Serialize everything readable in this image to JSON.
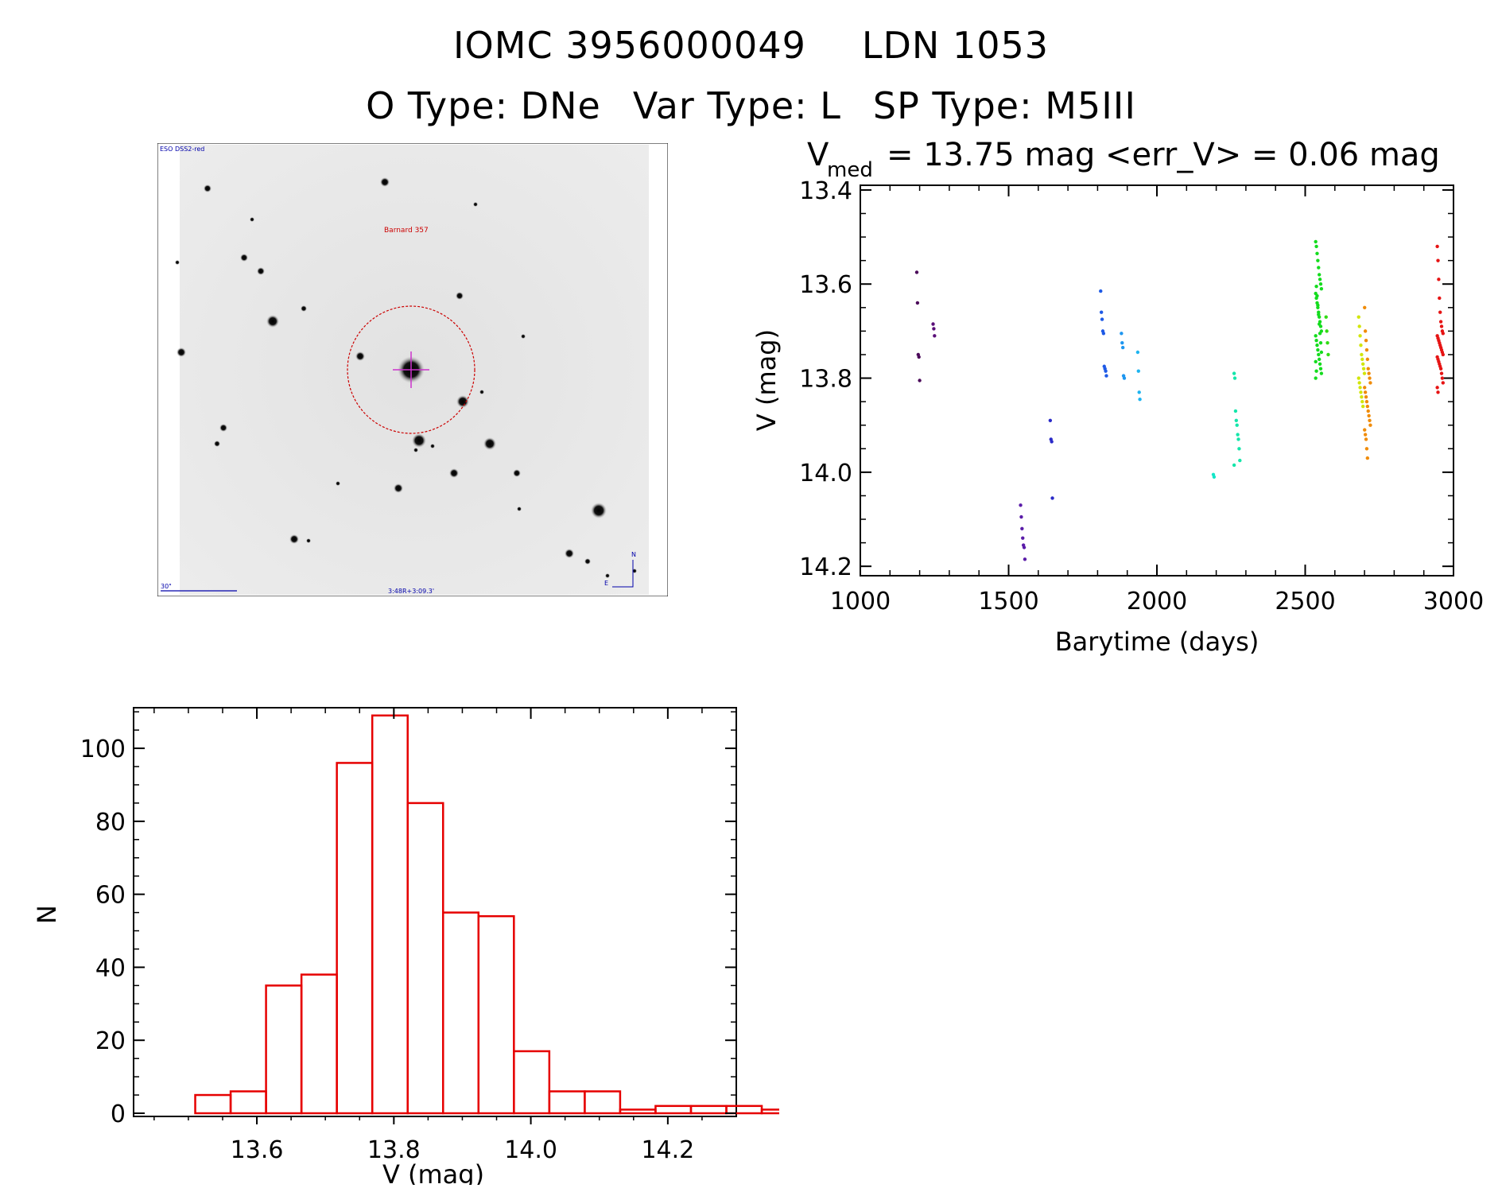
{
  "header": {
    "object_id": "IOMC 3956000049",
    "object_name": "LDN 1053",
    "otype_label": "O Type:",
    "otype": "DNe",
    "vartype_label": "Var Type:",
    "vartype": "L",
    "sptype_label": "SP Type:",
    "sptype": "M5III"
  },
  "finder": {
    "survey_label": "ESO DSS2-red",
    "target_label": "Barnard 357",
    "scale_label": "30\"",
    "coords_label": "3:48R+3:09.3'",
    "north_label": "N",
    "east_label": "E",
    "circle_color": "#cc0000",
    "marker_color": "#cc33cc"
  },
  "chart_data": [
    {
      "type": "scatter",
      "title_prefix": "V",
      "title_sub": "med",
      "title_rest": "= 13.75 mag <err_V> = 0.06 mag",
      "xlabel": "Barytime (days)",
      "ylabel": "V (mag)",
      "xlim": [
        1000,
        3000
      ],
      "ylim": [
        14.22,
        13.39
      ],
      "y_inverted": true,
      "xticks": [
        1000,
        1500,
        2000,
        2500,
        3000
      ],
      "yticks": [
        13.4,
        13.6,
        13.8,
        14.0,
        14.2
      ],
      "xtick_labels": [
        "1000",
        "1500",
        "2000",
        "2500",
        "3000"
      ],
      "ytick_labels": [
        "13.4",
        "13.6",
        "13.8",
        "14.0",
        "14.2"
      ],
      "grid": false,
      "groups": [
        {
          "x": 1200,
          "color": "#4b0a5a",
          "values": [
            13.575,
            13.64,
            13.75,
            13.755,
            13.805
          ]
        },
        {
          "x": 1255,
          "color": "#5a0f78",
          "values": [
            13.685,
            13.695,
            13.71
          ]
        },
        {
          "x": 1550,
          "color": "#5a1ca8",
          "values": [
            14.07,
            14.095,
            14.12,
            14.14,
            14.155,
            14.16,
            14.185
          ]
        },
        {
          "x": 1650,
          "color": "#2a2ac8",
          "values": [
            13.89,
            13.93,
            13.935,
            14.055
          ]
        },
        {
          "x": 1820,
          "color": "#1e5ae6",
          "values": [
            13.615,
            13.66,
            13.675,
            13.7,
            13.705,
            13.775,
            13.78,
            13.785,
            13.795
          ]
        },
        {
          "x": 1890,
          "color": "#1e96f0",
          "values": [
            13.705,
            13.725,
            13.735,
            13.795,
            13.8
          ]
        },
        {
          "x": 1945,
          "color": "#1eb4f0",
          "values": [
            13.745,
            13.785,
            13.83,
            13.845
          ]
        },
        {
          "x": 2200,
          "color": "#14e6c8",
          "values": [
            14.005,
            14.01
          ]
        },
        {
          "x": 2270,
          "color": "#14e6aa",
          "values": [
            13.79,
            13.8,
            13.87,
            13.89,
            13.9,
            13.92,
            13.93,
            13.95,
            13.975,
            13.985
          ]
        },
        {
          "x": 2545,
          "color": "#14dc1e",
          "values": [
            13.51,
            13.52,
            13.535,
            13.55,
            13.565,
            13.58,
            13.59,
            13.6,
            13.61,
            13.62,
            13.63,
            13.64,
            13.65,
            13.66,
            13.67,
            13.68,
            13.69,
            13.7,
            13.71,
            13.72,
            13.73,
            13.74,
            13.75,
            13.76,
            13.77,
            13.78,
            13.79,
            13.8,
            13.605,
            13.625,
            13.645,
            13.665,
            13.685,
            13.705,
            13.725,
            13.745,
            13.765,
            13.785
          ]
        },
        {
          "x": 2580,
          "color": "#32dc14",
          "values": [
            13.67,
            13.7,
            13.725,
            13.75
          ]
        },
        {
          "x": 2690,
          "color": "#d2e60a",
          "values": [
            13.67,
            13.69,
            13.71,
            13.73,
            13.75,
            13.76,
            13.77,
            13.78,
            13.79,
            13.8,
            13.81,
            13.82,
            13.83,
            13.84,
            13.85,
            13.86
          ]
        },
        {
          "x": 2710,
          "color": "#f08c0a",
          "values": [
            13.65,
            13.7,
            13.72,
            13.74,
            13.76,
            13.78,
            13.79,
            13.8,
            13.81,
            13.82,
            13.83,
            13.84,
            13.85,
            13.86,
            13.87,
            13.88,
            13.89,
            13.9,
            13.91,
            13.92,
            13.93,
            13.95,
            13.97
          ]
        },
        {
          "x": 2955,
          "color": "#e61414",
          "values": [
            13.52,
            13.55,
            13.59,
            13.63,
            13.66,
            13.68,
            13.69,
            13.7,
            13.705,
            13.71,
            13.715,
            13.72,
            13.725,
            13.73,
            13.735,
            13.74,
            13.745,
            13.75,
            13.755,
            13.76,
            13.765,
            13.77,
            13.775,
            13.78,
            13.79,
            13.8,
            13.81,
            13.82,
            13.83
          ]
        }
      ]
    },
    {
      "type": "bar",
      "subtype": "histogram",
      "xlabel": "V (mag)",
      "ylabel": "N",
      "xlim": [
        13.42,
        14.3
      ],
      "ylim": [
        0,
        112
      ],
      "xticks": [
        13.6,
        13.8,
        14.0,
        14.2
      ],
      "xtick_labels": [
        "13.6",
        "13.8",
        "14.0",
        "14.2"
      ],
      "yticks": [
        0,
        20,
        40,
        60,
        80,
        100
      ],
      "ytick_labels": [
        "0",
        "20",
        "40",
        "60",
        "80",
        "100"
      ],
      "bin_width": 0.0517,
      "bin_start": 13.51,
      "values": [
        5,
        6,
        35,
        38,
        96,
        109,
        85,
        55,
        54,
        17,
        6,
        6,
        1,
        2,
        2,
        2,
        1
      ],
      "color": "#e60000",
      "grid": false
    }
  ]
}
